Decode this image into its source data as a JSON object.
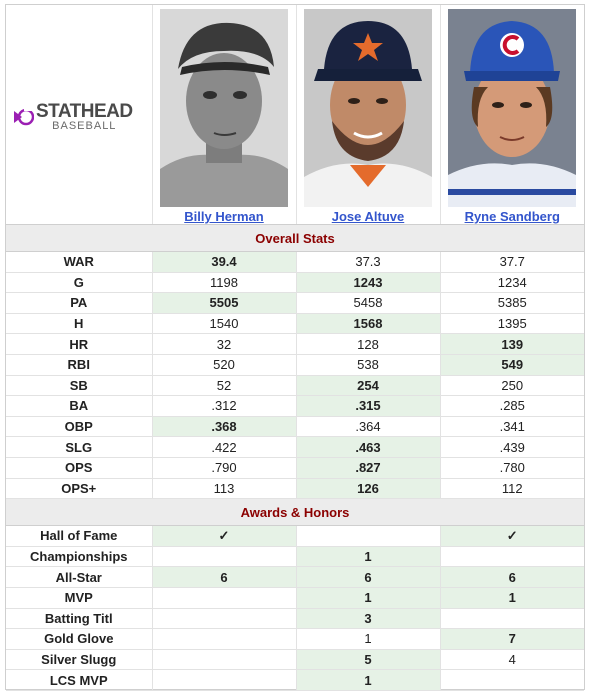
{
  "brand": {
    "line1": "STATHEAD",
    "line2": "BASEBALL",
    "accent": "#9b1fb3"
  },
  "players": [
    {
      "name": "Billy Herman"
    },
    {
      "name": "Jose Altuve"
    },
    {
      "name": "Ryne Sandberg"
    }
  ],
  "sections": {
    "overall": "Overall Stats",
    "awards": "Awards & Honors"
  },
  "overall_stats": [
    {
      "label": "WAR",
      "values": [
        "39.4",
        "37.3",
        "37.7"
      ],
      "leader": 0
    },
    {
      "label": "G",
      "values": [
        "1198",
        "1243",
        "1234"
      ],
      "leader": 1
    },
    {
      "label": "PA",
      "values": [
        "5505",
        "5458",
        "5385"
      ],
      "leader": 0
    },
    {
      "label": "H",
      "values": [
        "1540",
        "1568",
        "1395"
      ],
      "leader": 1
    },
    {
      "label": "HR",
      "values": [
        "32",
        "128",
        "139"
      ],
      "leader": 2
    },
    {
      "label": "RBI",
      "values": [
        "520",
        "538",
        "549"
      ],
      "leader": 2
    },
    {
      "label": "SB",
      "values": [
        "52",
        "254",
        "250"
      ],
      "leader": 1
    },
    {
      "label": "BA",
      "values": [
        ".312",
        ".315",
        ".285"
      ],
      "leader": 1
    },
    {
      "label": "OBP",
      "values": [
        ".368",
        ".364",
        ".341"
      ],
      "leader": 0
    },
    {
      "label": "SLG",
      "values": [
        ".422",
        ".463",
        ".439"
      ],
      "leader": 1
    },
    {
      "label": "OPS",
      "values": [
        ".790",
        ".827",
        ".780"
      ],
      "leader": 1
    },
    {
      "label": "OPS+",
      "values": [
        "113",
        "126",
        "112"
      ],
      "leader": 1
    }
  ],
  "awards": [
    {
      "label": "Hall of Fame",
      "values": [
        "✓",
        "",
        "✓"
      ],
      "leaders": [
        0,
        2
      ]
    },
    {
      "label": "Championships",
      "values": [
        "",
        "1",
        ""
      ],
      "leaders": [
        1
      ]
    },
    {
      "label": "All-Star",
      "values": [
        "6",
        "6",
        "6"
      ],
      "leaders": [
        0,
        1,
        2
      ]
    },
    {
      "label": "MVP",
      "values": [
        "",
        "1",
        "1"
      ],
      "leaders": [
        1,
        2
      ]
    },
    {
      "label": "Batting Titl",
      "values": [
        "",
        "3",
        ""
      ],
      "leaders": [
        1
      ]
    },
    {
      "label": "Gold Glove",
      "values": [
        "",
        "1",
        "7"
      ],
      "leaders": [
        2
      ]
    },
    {
      "label": "Silver Slugg",
      "values": [
        "",
        "5",
        "4"
      ],
      "leaders": [
        1
      ]
    },
    {
      "label": "LCS MVP",
      "values": [
        "",
        "1",
        ""
      ],
      "leaders": [
        1
      ]
    }
  ]
}
